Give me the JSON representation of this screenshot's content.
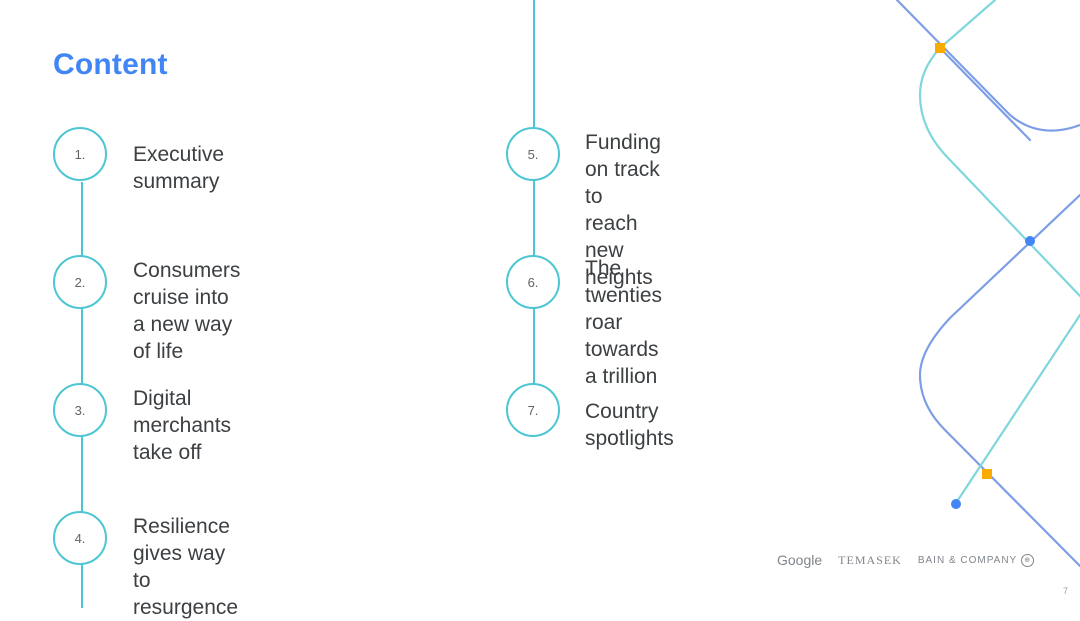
{
  "slide": {
    "title": "Content",
    "page_number": "7"
  },
  "agenda": {
    "items": [
      {
        "number": "1.",
        "label": "Executive summary"
      },
      {
        "number": "2.",
        "label": "Consumers cruise into\na new way of life"
      },
      {
        "number": "3.",
        "label": "Digital merchants\ntake off"
      },
      {
        "number": "4.",
        "label": "Resilience gives way\nto resurgence"
      },
      {
        "number": "5.",
        "label": "Funding on track to\nreach new heights"
      },
      {
        "number": "6.",
        "label": "The twenties roar\ntowards a trillion"
      },
      {
        "number": "7.",
        "label": "Country spotlights"
      }
    ]
  },
  "footer": {
    "logos": {
      "google": "Google",
      "temasek": "TEMASEK",
      "bain": "BAIN & COMPANY"
    }
  },
  "colors": {
    "title_blue": "#4285f4",
    "line_teal": "#4cc6d2",
    "deco_blue": "#7d9ee6",
    "deco_teal": "#7fd6dc",
    "node_orange": "#f9ab00",
    "node_blue": "#4285f4"
  }
}
